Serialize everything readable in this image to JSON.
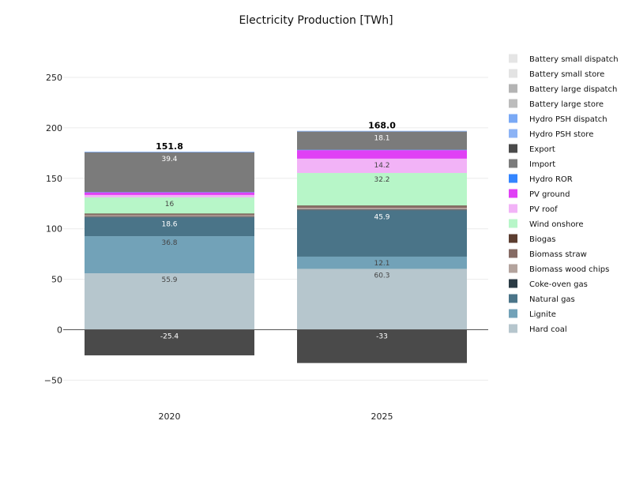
{
  "chart_data": {
    "type": "bar",
    "stacked": true,
    "title": "Electricity Production [TWh]",
    "xlabel": "",
    "ylabel": "",
    "categories": [
      "2020",
      "2025"
    ],
    "ylim": [
      -70,
      275
    ],
    "yticks": [
      -50,
      0,
      50,
      100,
      150,
      200,
      250
    ],
    "ytick_labels": [
      "−50",
      "0",
      "50",
      "100",
      "150",
      "200",
      "250"
    ],
    "grid": true,
    "legend_position": "right",
    "totals": [
      "151.8",
      "168.0"
    ],
    "series": [
      {
        "name": "Hard coal",
        "color": "#b6c6cd",
        "values": [
          55.9,
          60.3
        ],
        "labels": [
          "55.9",
          "60.3"
        ],
        "label_color": "#444444"
      },
      {
        "name": "Lignite",
        "color": "#72a2b8",
        "values": [
          36.8,
          12.1
        ],
        "labels": [
          "36.8",
          "12.1"
        ],
        "label_color": "#444444"
      },
      {
        "name": "Natural gas",
        "color": "#4a7488",
        "values": [
          18.6,
          45.9
        ],
        "labels": [
          "18.6",
          "45.9"
        ],
        "label_color": "#ffffff"
      },
      {
        "name": "Coke-oven gas",
        "color": "#2a3a44",
        "values": [
          0.6,
          0.8
        ],
        "labels": [
          "",
          ""
        ],
        "label_color": "#ffffff"
      },
      {
        "name": "Biomass wood chips",
        "color": "#b3a39d",
        "values": [
          1.4,
          1.6
        ],
        "labels": [
          "",
          ""
        ],
        "label_color": "#444444"
      },
      {
        "name": "Biomass straw",
        "color": "#866b64",
        "values": [
          1.3,
          1.8
        ],
        "labels": [
          "",
          ""
        ],
        "label_color": "#ffffff"
      },
      {
        "name": "Biogas",
        "color": "#5c3d30",
        "values": [
          0.5,
          0.6
        ],
        "labels": [
          "",
          ""
        ],
        "label_color": "#ffffff"
      },
      {
        "name": "Wind onshore",
        "color": "#b7f6c8",
        "values": [
          16,
          32.2
        ],
        "labels": [
          "16",
          "32.2"
        ],
        "label_color": "#444444"
      },
      {
        "name": "PV roof",
        "color": "#f2b3f7",
        "values": [
          2.4,
          14.2
        ],
        "labels": [
          "",
          "14.2"
        ],
        "label_color": "#444444"
      },
      {
        "name": "PV ground",
        "color": "#e040f5",
        "values": [
          2.6,
          8.4
        ],
        "labels": [
          "",
          ""
        ],
        "label_color": "#ffffff"
      },
      {
        "name": "Hydro ROR",
        "color": "#3385ff",
        "values": [
          0.3,
          0.4
        ],
        "labels": [
          "",
          ""
        ],
        "label_color": "#ffffff"
      },
      {
        "name": "Import",
        "color": "#7b7b7b",
        "values": [
          39.4,
          18.1
        ],
        "labels": [
          "39.4",
          "18.1"
        ],
        "label_color": "#ffffff"
      },
      {
        "name": "Export",
        "color": "#4a4a4a",
        "values": [
          -25.4,
          -33
        ],
        "labels": [
          "-25.4",
          "-33"
        ],
        "label_color": "#ffffff"
      },
      {
        "name": "Hydro PSH store",
        "color": "#8cb3f5",
        "values": [
          0.3,
          0.3
        ],
        "labels": [
          "",
          ""
        ],
        "label_color": "#444444"
      },
      {
        "name": "Hydro PSH dispatch",
        "color": "#7aa9f5",
        "values": [
          0.3,
          0.3
        ],
        "labels": [
          "",
          ""
        ],
        "label_color": "#444444"
      },
      {
        "name": "Battery large store",
        "color": "#bcbcbc",
        "values": [
          0,
          0
        ],
        "labels": [
          "",
          ""
        ],
        "label_color": "#444444"
      },
      {
        "name": "Battery large dispatch",
        "color": "#b4b4b4",
        "values": [
          0,
          0
        ],
        "labels": [
          "",
          ""
        ],
        "label_color": "#444444"
      },
      {
        "name": "Battery small store",
        "color": "#e3e3e3",
        "values": [
          0,
          0
        ],
        "labels": [
          "",
          ""
        ],
        "label_color": "#444444"
      },
      {
        "name": "Battery small dispatch",
        "color": "#e5e5e5",
        "values": [
          0,
          0
        ],
        "labels": [
          "",
          ""
        ],
        "label_color": "#444444"
      }
    ]
  }
}
